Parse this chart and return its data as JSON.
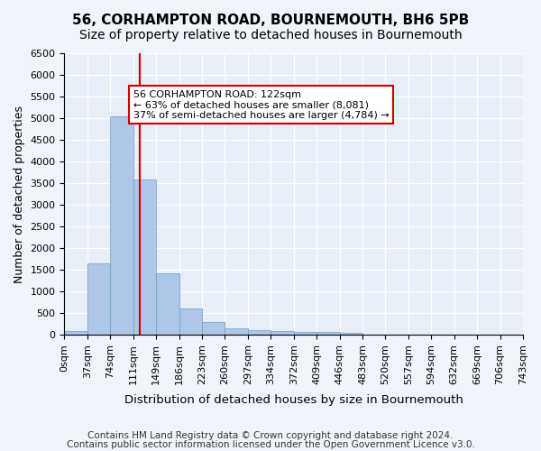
{
  "title": "56, CORHAMPTON ROAD, BOURNEMOUTH, BH6 5PB",
  "subtitle": "Size of property relative to detached houses in Bournemouth",
  "xlabel": "Distribution of detached houses by size in Bournemouth",
  "ylabel": "Number of detached properties",
  "bin_labels": [
    "0sqm",
    "37sqm",
    "74sqm",
    "111sqm",
    "149sqm",
    "186sqm",
    "223sqm",
    "260sqm",
    "297sqm",
    "334sqm",
    "372sqm",
    "409sqm",
    "446sqm",
    "483sqm",
    "520sqm",
    "557sqm",
    "594sqm",
    "632sqm",
    "669sqm",
    "706sqm",
    "743sqm"
  ],
  "bar_values": [
    75,
    1650,
    5050,
    3580,
    1410,
    615,
    290,
    150,
    110,
    80,
    60,
    55,
    50,
    0,
    0,
    0,
    0,
    0,
    0,
    0
  ],
  "bar_color": "#aec6e8",
  "bar_edge_color": "#6a9ec4",
  "vline_x": 3.27,
  "vline_color": "#cc0000",
  "annotation_text": "56 CORHAMPTON ROAD: 122sqm\n← 63% of detached houses are smaller (8,081)\n37% of semi-detached houses are larger (4,784) →",
  "annotation_box_color": "#ffffff",
  "annotation_box_edge": "#cc0000",
  "ylim": [
    0,
    6500
  ],
  "yticks": [
    0,
    500,
    1000,
    1500,
    2000,
    2500,
    3000,
    3500,
    4000,
    4500,
    5000,
    5500,
    6000,
    6500
  ],
  "footer_line1": "Contains HM Land Registry data © Crown copyright and database right 2024.",
  "footer_line2": "Contains public sector information licensed under the Open Government Licence v3.0.",
  "bg_color": "#f0f4fa",
  "plot_bg_color": "#e8eef8",
  "grid_color": "#ffffff",
  "title_fontsize": 11,
  "subtitle_fontsize": 10,
  "axis_label_fontsize": 9,
  "tick_fontsize": 8,
  "footer_fontsize": 7.5
}
